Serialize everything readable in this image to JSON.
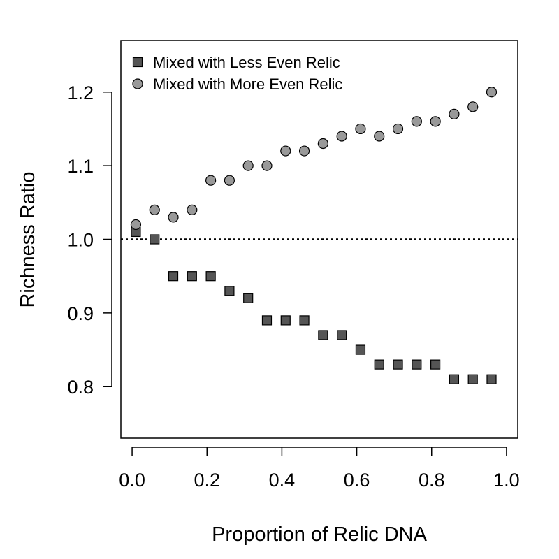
{
  "chart_data": {
    "type": "scatter",
    "title": "",
    "xlabel": "Proportion of Relic DNA",
    "ylabel": "Richness Ratio",
    "xlim": [
      -0.03,
      1.03
    ],
    "ylim": [
      0.73,
      1.27
    ],
    "xticks": [
      0.0,
      0.2,
      0.4,
      0.6,
      0.8,
      1.0
    ],
    "xtick_labels": [
      "0.0",
      "0.2",
      "0.4",
      "0.6",
      "0.8",
      "1.0"
    ],
    "yticks": [
      0.8,
      0.9,
      1.0,
      1.1,
      1.2
    ],
    "ytick_labels": [
      "0.8",
      "0.9",
      "1.0",
      "1.1",
      "1.2"
    ],
    "reference_line": {
      "y": 1.0,
      "style": "dotted"
    },
    "grid": false,
    "legend_position": "top-left",
    "series": [
      {
        "name": "Mixed with Less Even Relic",
        "marker": "square",
        "color": "#555555",
        "x": [
          0.01,
          0.06,
          0.11,
          0.16,
          0.21,
          0.26,
          0.31,
          0.36,
          0.41,
          0.46,
          0.51,
          0.56,
          0.61,
          0.66,
          0.71,
          0.76,
          0.81,
          0.86,
          0.91,
          0.96
        ],
        "y": [
          1.01,
          1.0,
          0.95,
          0.95,
          0.95,
          0.93,
          0.92,
          0.89,
          0.89,
          0.89,
          0.87,
          0.87,
          0.85,
          0.83,
          0.83,
          0.83,
          0.83,
          0.81,
          0.81,
          0.81
        ]
      },
      {
        "name": "Mixed with More Even Relic",
        "marker": "circle",
        "color": "#999999",
        "x": [
          0.01,
          0.06,
          0.11,
          0.16,
          0.21,
          0.26,
          0.31,
          0.36,
          0.41,
          0.46,
          0.51,
          0.56,
          0.61,
          0.66,
          0.71,
          0.76,
          0.81,
          0.86,
          0.91,
          0.96
        ],
        "y": [
          1.02,
          1.04,
          1.03,
          1.04,
          1.08,
          1.08,
          1.1,
          1.1,
          1.12,
          1.12,
          1.13,
          1.14,
          1.15,
          1.14,
          1.15,
          1.16,
          1.16,
          1.17,
          1.18,
          1.2
        ]
      }
    ]
  }
}
